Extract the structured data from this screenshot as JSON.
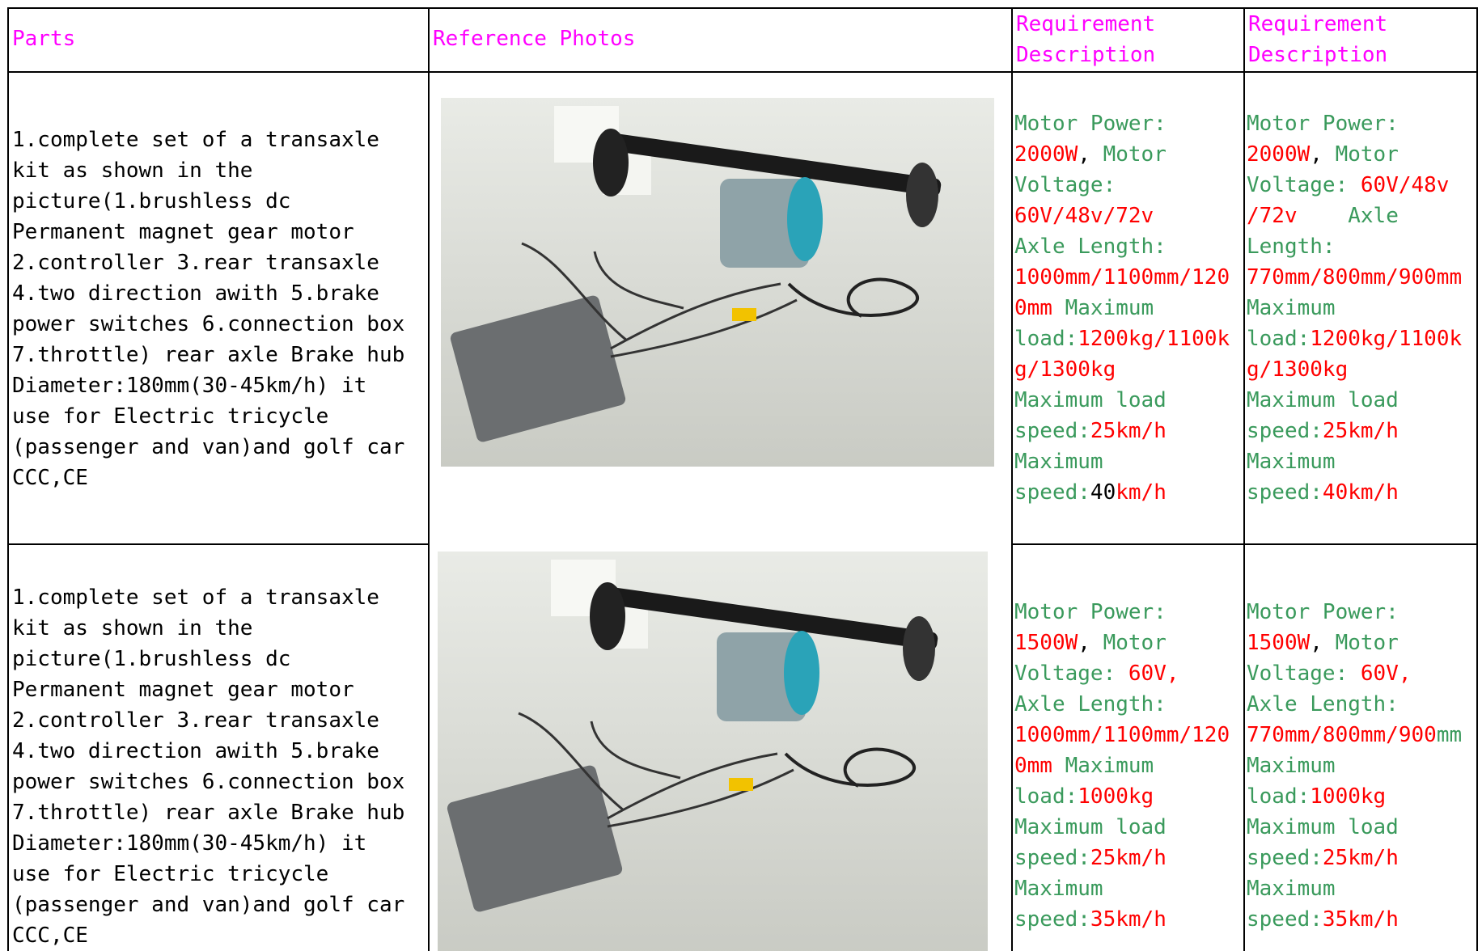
{
  "table": {
    "header": [
      [
        "Parts"
      ],
      [
        "Reference Photos"
      ],
      [
        "Requirement",
        "Description"
      ],
      [
        "Requirement",
        "Description"
      ]
    ],
    "rows": [
      {
        "parts": [
          "1.complete set of a transaxle",
          "kit as shown in the",
          "picture(1.brushless dc",
          "Permanent magnet gear motor",
          "2.controller 3.rear transaxle",
          "4.two direction awith 5.brake",
          "power switches 6.connection box",
          "7.throttle) rear axle Brake hub",
          "Diameter:180mm(30-45km/h) it",
          "use for Electric tricycle",
          "(passenger and van)and golf car",
          "CCC,CE"
        ],
        "requirements": [
          [
            [
              {
                "text": "Motor Power:",
                "color": "#3a9a5c"
              }
            ],
            [
              {
                "text": "2000W",
                "color": "#ff0000"
              },
              {
                "text": ", ",
                "color": "#000000"
              },
              {
                "text": "Motor",
                "color": "#3a9a5c"
              }
            ],
            [
              {
                "text": "Voltage:",
                "color": "#3a9a5c"
              }
            ],
            [
              {
                "text": "60V/48v/72v",
                "color": "#ff0000"
              }
            ],
            [
              {
                "text": "Axle Length:",
                "color": "#3a9a5c"
              }
            ],
            [
              {
                "text": "1000mm/1100mm/120",
                "color": "#ff0000"
              }
            ],
            [
              {
                "text": "0mm",
                "color": "#ff0000"
              },
              {
                "text": " Maximum",
                "color": "#3a9a5c"
              }
            ],
            [
              {
                "text": "load:",
                "color": "#3a9a5c"
              },
              {
                "text": "1200kg/1100k",
                "color": "#ff0000"
              }
            ],
            [
              {
                "text": "g/1300kg",
                "color": "#ff0000"
              }
            ],
            [
              {
                "text": "Maximum load",
                "color": "#3a9a5c"
              }
            ],
            [
              {
                "text": "speed:",
                "color": "#3a9a5c"
              },
              {
                "text": "25km/h",
                "color": "#ff0000"
              }
            ],
            [
              {
                "text": "Maximum",
                "color": "#3a9a5c"
              }
            ],
            [
              {
                "text": "speed:",
                "color": "#3a9a5c"
              },
              {
                "text": "40",
                "color": "#000000"
              },
              {
                "text": "km/h",
                "color": "#ff0000"
              }
            ]
          ],
          [
            [
              {
                "text": "Motor Power:",
                "color": "#3a9a5c"
              }
            ],
            [
              {
                "text": "2000W",
                "color": "#ff0000"
              },
              {
                "text": ", ",
                "color": "#000000"
              },
              {
                "text": "Motor",
                "color": "#3a9a5c"
              }
            ],
            [
              {
                "text": "Voltage: ",
                "color": "#3a9a5c"
              },
              {
                "text": "60V/48v",
                "color": "#ff0000"
              }
            ],
            [
              {
                "text": "/72v",
                "color": "#ff0000"
              },
              {
                "text": "    Axle",
                "color": "#3a9a5c"
              }
            ],
            [
              {
                "text": "Length:",
                "color": "#3a9a5c"
              }
            ],
            [
              {
                "text": "770mm/800mm/900mm",
                "color": "#ff0000"
              }
            ],
            [
              {
                "text": "Maximum",
                "color": "#3a9a5c"
              }
            ],
            [
              {
                "text": "load:",
                "color": "#3a9a5c"
              },
              {
                "text": "1200kg/1100k",
                "color": "#ff0000"
              }
            ],
            [
              {
                "text": "g/1300kg",
                "color": "#ff0000"
              }
            ],
            [
              {
                "text": "Maximum load",
                "color": "#3a9a5c"
              }
            ],
            [
              {
                "text": "speed:",
                "color": "#3a9a5c"
              },
              {
                "text": "25km/h",
                "color": "#ff0000"
              }
            ],
            [
              {
                "text": "Maximum",
                "color": "#3a9a5c"
              }
            ],
            [
              {
                "text": "speed:",
                "color": "#3a9a5c"
              },
              {
                "text": "40km/h",
                "color": "#ff0000"
              }
            ]
          ]
        ]
      },
      {
        "parts": [
          "1.complete set of a transaxle",
          "kit as shown in the",
          "picture(1.brushless dc",
          "Permanent magnet gear motor",
          "2.controller 3.rear transaxle",
          "4.two direction awith 5.brake",
          "power switches 6.connection box",
          "7.throttle) rear axle Brake hub",
          "Diameter:180mm(30-45km/h) it",
          "use for Electric tricycle",
          "(passenger and van)and golf car",
          "CCC,CE"
        ],
        "requirements": [
          [
            [
              {
                "text": "Motor Power:",
                "color": "#3a9a5c"
              }
            ],
            [
              {
                "text": "1500W",
                "color": "#ff0000"
              },
              {
                "text": ", ",
                "color": "#000000"
              },
              {
                "text": "Motor",
                "color": "#3a9a5c"
              }
            ],
            [
              {
                "text": "Voltage: ",
                "color": "#3a9a5c"
              },
              {
                "text": "60V,",
                "color": "#ff0000"
              }
            ],
            [
              {
                "text": "Axle Length:",
                "color": "#3a9a5c"
              }
            ],
            [
              {
                "text": "1000mm/1100mm/120",
                "color": "#ff0000"
              }
            ],
            [
              {
                "text": "0mm",
                "color": "#ff0000"
              },
              {
                "text": " Maximum",
                "color": "#3a9a5c"
              }
            ],
            [
              {
                "text": "load:",
                "color": "#3a9a5c"
              },
              {
                "text": "1000kg",
                "color": "#ff0000"
              }
            ],
            [
              {
                "text": "Maximum load",
                "color": "#3a9a5c"
              }
            ],
            [
              {
                "text": "speed:",
                "color": "#3a9a5c"
              },
              {
                "text": "25km/h",
                "color": "#ff0000"
              }
            ],
            [
              {
                "text": "Maximum",
                "color": "#3a9a5c"
              }
            ],
            [
              {
                "text": "speed:",
                "color": "#3a9a5c"
              },
              {
                "text": "35km/h",
                "color": "#ff0000"
              }
            ]
          ],
          [
            [
              {
                "text": "Motor Power:",
                "color": "#3a9a5c"
              }
            ],
            [
              {
                "text": "1500W",
                "color": "#ff0000"
              },
              {
                "text": ", ",
                "color": "#000000"
              },
              {
                "text": "Motor",
                "color": "#3a9a5c"
              }
            ],
            [
              {
                "text": "Voltage: ",
                "color": "#3a9a5c"
              },
              {
                "text": "60V,",
                "color": "#ff0000"
              }
            ],
            [
              {
                "text": "Axle Length:",
                "color": "#3a9a5c"
              }
            ],
            [
              {
                "text": "770mm/800mm/900",
                "color": "#ff0000"
              },
              {
                "text": "mm",
                "color": "#3a9a5c"
              }
            ],
            [
              {
                "text": "Maximum",
                "color": "#3a9a5c"
              }
            ],
            [
              {
                "text": "load:",
                "color": "#3a9a5c"
              },
              {
                "text": "1000kg",
                "color": "#ff0000"
              }
            ],
            [
              {
                "text": "Maximum load",
                "color": "#3a9a5c"
              }
            ],
            [
              {
                "text": "speed:",
                "color": "#3a9a5c"
              },
              {
                "text": "25km/h",
                "color": "#ff0000"
              }
            ],
            [
              {
                "text": "Maximum",
                "color": "#3a9a5c"
              }
            ],
            [
              {
                "text": "speed:",
                "color": "#3a9a5c"
              },
              {
                "text": "35km/h",
                "color": "#ff0000"
              }
            ]
          ]
        ]
      }
    ]
  }
}
